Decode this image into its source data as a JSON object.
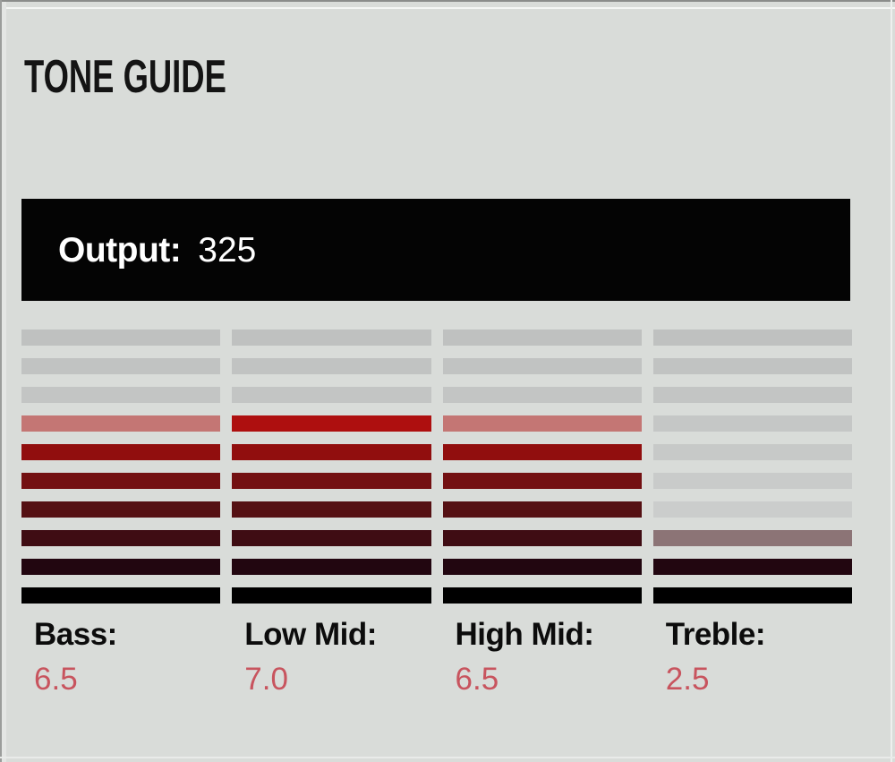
{
  "panel": {
    "title": "TONE GUIDE"
  },
  "output": {
    "label": "Output:",
    "value": "325"
  },
  "chart_data": {
    "type": "bar",
    "subtype": "segmented-tone-meter",
    "title": "TONE GUIDE",
    "output_label": "Output:",
    "output_value": 325,
    "segments_per_band": 10,
    "scale": {
      "min": 0,
      "max": 10,
      "step": 0.5
    },
    "legend_position": "below-bands",
    "bands": [
      {
        "label": "Bass:",
        "value": 6.5,
        "value_label": "6.5"
      },
      {
        "label": "Low Mid:",
        "value": 7.0,
        "value_label": "7.0"
      },
      {
        "label": "High Mid:",
        "value": 6.5,
        "value_label": "6.5"
      },
      {
        "label": "Treble:",
        "value": 2.5,
        "value_label": "2.5"
      }
    ],
    "colors": {
      "background": "#d9dcd9",
      "output_bar_bg": "#040404",
      "output_text": "#ffffff",
      "title_text": "#141414",
      "label_text": "#0c0c0c",
      "value_text": "#c8545e",
      "lit_by_level": {
        "7": "#ae0f0f",
        "6": "#910e0e",
        "5": "#731012",
        "4": "#551013",
        "3": "#3f0c13",
        "2": "#220610",
        "1": "#000000"
      },
      "unlit_top": "#bfc1c0",
      "unlit_bottom": "#d1d3d2"
    }
  }
}
